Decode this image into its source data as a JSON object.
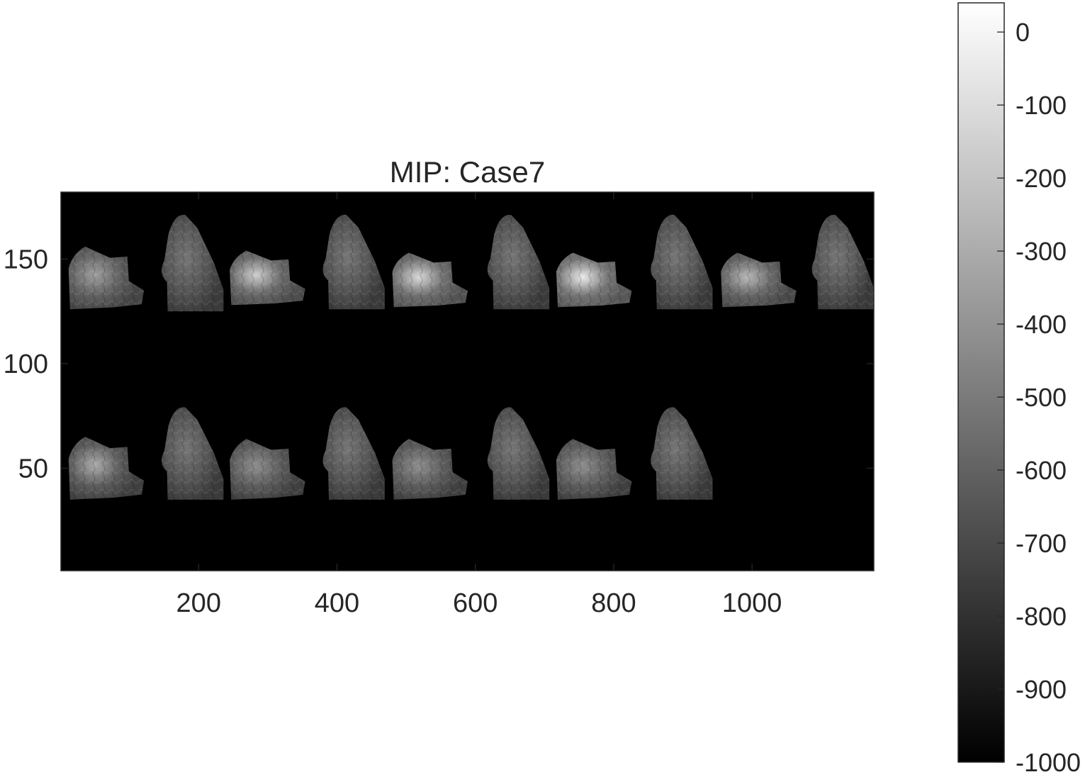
{
  "chart_data": {
    "type": "heatmap",
    "title": "MIP: Case7",
    "xlabel": "",
    "ylabel": "",
    "xlim": [
      1,
      1176
    ],
    "ylim": [
      1,
      182
    ],
    "x_direction": "normal",
    "y_direction": "normal",
    "x_ticks": [
      200,
      400,
      600,
      800,
      1000
    ],
    "y_ticks": [
      50,
      100,
      150
    ],
    "x_tick_labels": [
      "200",
      "400",
      "600",
      "800",
      "1000"
    ],
    "y_tick_labels": [
      "50",
      "100",
      "150"
    ],
    "grid": false,
    "background_value": -1000,
    "colormap": "gray",
    "colorbar": {
      "location": "right",
      "clim": [
        -1000,
        40
      ],
      "ticks": [
        0,
        -100,
        -200,
        -300,
        -400,
        -500,
        -600,
        -700,
        -800,
        -900,
        -1000
      ],
      "tick_labels": [
        "0",
        "-100",
        "-200",
        "-300",
        "-400",
        "-500",
        "-600",
        "-700",
        "-800",
        "-900",
        "-1000"
      ]
    },
    "tiles": [
      {
        "row": 1,
        "view": "axial",
        "x_range": [
          12,
          121
        ],
        "y_range": [
          126,
          156
        ],
        "intensity": -600,
        "highlight": -350
      },
      {
        "row": 1,
        "view": "coronal",
        "x_range": [
          141,
          236
        ],
        "y_range": [
          125,
          172
        ],
        "intensity": -640,
        "highlight": -520
      },
      {
        "row": 1,
        "view": "axial",
        "x_range": [
          245,
          354
        ],
        "y_range": [
          128,
          154
        ],
        "intensity": -560,
        "highlight": -160
      },
      {
        "row": 1,
        "view": "coronal",
        "x_range": [
          374,
          469
        ],
        "y_range": [
          126,
          172
        ],
        "intensity": -640,
        "highlight": -520
      },
      {
        "row": 1,
        "view": "axial",
        "x_range": [
          480,
          589
        ],
        "y_range": [
          127,
          153
        ],
        "intensity": -540,
        "highlight": -120
      },
      {
        "row": 1,
        "view": "coronal",
        "x_range": [
          612,
          707
        ],
        "y_range": [
          126,
          172
        ],
        "intensity": -640,
        "highlight": -520
      },
      {
        "row": 1,
        "view": "axial",
        "x_range": [
          717,
          826
        ],
        "y_range": [
          127,
          153
        ],
        "intensity": -520,
        "highlight": -40
      },
      {
        "row": 1,
        "view": "coronal",
        "x_range": [
          848,
          943
        ],
        "y_range": [
          126,
          172
        ],
        "intensity": -640,
        "highlight": -520
      },
      {
        "row": 1,
        "view": "axial",
        "x_range": [
          955,
          1064
        ],
        "y_range": [
          127,
          153
        ],
        "intensity": -580,
        "highlight": -250
      },
      {
        "row": 1,
        "view": "coronal",
        "x_range": [
          1081,
          1176
        ],
        "y_range": [
          126,
          172
        ],
        "intensity": -640,
        "highlight": -520
      },
      {
        "row": 2,
        "view": "axial",
        "x_range": [
          12,
          121
        ],
        "y_range": [
          35,
          65
        ],
        "intensity": -620,
        "highlight": -300
      },
      {
        "row": 2,
        "view": "coronal",
        "x_range": [
          141,
          236
        ],
        "y_range": [
          35,
          80
        ],
        "intensity": -640,
        "highlight": -520
      },
      {
        "row": 2,
        "view": "axial",
        "x_range": [
          245,
          354
        ],
        "y_range": [
          35,
          64
        ],
        "intensity": -620,
        "highlight": -420
      },
      {
        "row": 2,
        "view": "coronal",
        "x_range": [
          374,
          469
        ],
        "y_range": [
          35,
          80
        ],
        "intensity": -640,
        "highlight": -520
      },
      {
        "row": 2,
        "view": "axial",
        "x_range": [
          480,
          589
        ],
        "y_range": [
          35,
          64
        ],
        "intensity": -620,
        "highlight": -420
      },
      {
        "row": 2,
        "view": "coronal",
        "x_range": [
          612,
          707
        ],
        "y_range": [
          35,
          80
        ],
        "intensity": -640,
        "highlight": -520
      },
      {
        "row": 2,
        "view": "axial",
        "x_range": [
          717,
          826
        ],
        "y_range": [
          35,
          64
        ],
        "intensity": -620,
        "highlight": -420
      },
      {
        "row": 2,
        "view": "coronal",
        "x_range": [
          848,
          943
        ],
        "y_range": [
          35,
          80
        ],
        "intensity": -640,
        "highlight": -520
      }
    ]
  }
}
